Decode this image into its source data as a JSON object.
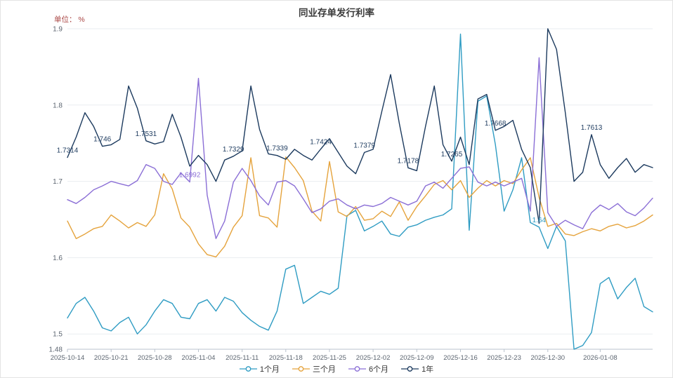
{
  "chart_data": {
    "type": "line",
    "title": "同业存单发行利率",
    "unit": "单位： %",
    "grid": true,
    "legend_position": "bottom",
    "ylim": [
      1.48,
      1.9
    ],
    "y_ticks": [
      {
        "value": 1.9,
        "label": "1.9"
      },
      {
        "value": 1.8,
        "label": "1.8"
      },
      {
        "value": 1.7,
        "label": "1.7"
      },
      {
        "value": 1.6,
        "label": "1.6"
      },
      {
        "value": 1.5,
        "label": "1.5"
      },
      {
        "value": 1.48,
        "label": "1.48"
      }
    ],
    "x_tick_labels": [
      "2025-10-14",
      "2025-10-21",
      "2025-10-28",
      "2025-11-04",
      "2025-11-11",
      "2025-11-18",
      "2025-11-25",
      "2025-12-02",
      "2025-12-09",
      "2025-12-16",
      "2025-12-23",
      "2025-12-30",
      "2026-01-08"
    ],
    "x_tick_indices": [
      0,
      5,
      10,
      15,
      20,
      25,
      30,
      35,
      40,
      45,
      50,
      55,
      61
    ],
    "x": [
      "2025-10-14",
      "2025-10-15",
      "2025-10-16",
      "2025-10-17",
      "2025-10-20",
      "2025-10-21",
      "2025-10-22",
      "2025-10-23",
      "2025-10-24",
      "2025-10-27",
      "2025-10-28",
      "2025-10-29",
      "2025-10-30",
      "2025-10-31",
      "2025-11-03",
      "2025-11-04",
      "2025-11-05",
      "2025-11-06",
      "2025-11-07",
      "2025-11-10",
      "2025-11-11",
      "2025-11-12",
      "2025-11-13",
      "2025-11-14",
      "2025-11-17",
      "2025-11-18",
      "2025-11-19",
      "2025-11-20",
      "2025-11-21",
      "2025-11-24",
      "2025-11-25",
      "2025-11-26",
      "2025-11-27",
      "2025-11-28",
      "2025-12-01",
      "2025-12-02",
      "2025-12-03",
      "2025-12-04",
      "2025-12-05",
      "2025-12-08",
      "2025-12-09",
      "2025-12-10",
      "2025-12-11",
      "2025-12-12",
      "2025-12-15",
      "2025-12-16",
      "2025-12-17",
      "2025-12-18",
      "2025-12-19",
      "2025-12-22",
      "2025-12-23",
      "2025-12-24",
      "2025-12-25",
      "2025-12-26",
      "2025-12-29",
      "2025-12-30",
      "2025-12-31",
      "2026-01-02",
      "2026-01-05",
      "2026-01-06",
      "2026-01-07",
      "2026-01-08",
      "2026-01-09",
      "2026-01-12",
      "2026-01-13",
      "2026-01-14",
      "2026-01-15",
      "2026-01-16"
    ],
    "series": [
      {
        "key": "1m",
        "name": "1个月",
        "color": "#2f9cc3",
        "values": [
          1.521,
          1.54,
          1.548,
          1.53,
          1.508,
          1.504,
          1.515,
          1.522,
          1.5,
          1.512,
          1.53,
          1.545,
          1.54,
          1.522,
          1.52,
          1.54,
          1.545,
          1.53,
          1.548,
          1.543,
          1.528,
          1.518,
          1.51,
          1.505,
          1.53,
          1.585,
          1.59,
          1.54,
          1.548,
          1.556,
          1.552,
          1.56,
          1.655,
          1.662,
          1.635,
          1.641,
          1.648,
          1.631,
          1.628,
          1.64,
          1.643,
          1.649,
          1.653,
          1.656,
          1.664,
          1.893,
          1.636,
          1.805,
          1.812,
          1.748,
          1.661,
          1.689,
          1.731,
          1.646,
          1.64,
          1.612,
          1.641,
          1.622,
          1.48,
          1.485,
          1.502,
          1.566,
          1.574,
          1.546,
          1.561,
          1.573,
          1.536,
          1.529
        ]
      },
      {
        "key": "3m",
        "name": "三个月",
        "color": "#e5a33c",
        "values": [
          1.648,
          1.625,
          1.631,
          1.638,
          1.641,
          1.656,
          1.648,
          1.639,
          1.646,
          1.641,
          1.656,
          1.71,
          1.69,
          1.652,
          1.64,
          1.618,
          1.604,
          1.601,
          1.615,
          1.64,
          1.655,
          1.731,
          1.655,
          1.652,
          1.64,
          1.732,
          1.718,
          1.701,
          1.661,
          1.648,
          1.726,
          1.66,
          1.654,
          1.667,
          1.649,
          1.651,
          1.661,
          1.654,
          1.673,
          1.649,
          1.667,
          1.681,
          1.696,
          1.701,
          1.689,
          1.701,
          1.679,
          1.691,
          1.701,
          1.694,
          1.701,
          1.697,
          1.715,
          1.731,
          1.679,
          1.641,
          1.645,
          1.631,
          1.629,
          1.634,
          1.638,
          1.635,
          1.641,
          1.644,
          1.639,
          1.642,
          1.648,
          1.656
        ]
      },
      {
        "key": "6m",
        "name": "6个月",
        "color": "#8b6fd6",
        "values": [
          1.676,
          1.671,
          1.679,
          1.689,
          1.694,
          1.7,
          1.697,
          1.694,
          1.701,
          1.722,
          1.717,
          1.7,
          1.696,
          1.711,
          1.6992,
          1.835,
          1.682,
          1.625,
          1.648,
          1.699,
          1.717,
          1.701,
          1.681,
          1.669,
          1.699,
          1.701,
          1.694,
          1.677,
          1.659,
          1.664,
          1.674,
          1.677,
          1.669,
          1.664,
          1.669,
          1.667,
          1.671,
          1.679,
          1.674,
          1.669,
          1.674,
          1.694,
          1.699,
          1.691,
          1.704,
          1.717,
          1.719,
          1.699,
          1.694,
          1.699,
          1.694,
          1.699,
          1.704,
          1.661,
          1.862,
          1.659,
          1.641,
          1.649,
          1.643,
          1.638,
          1.659,
          1.669,
          1.663,
          1.671,
          1.66,
          1.655,
          1.665,
          1.678
        ]
      },
      {
        "key": "1y",
        "name": "1年",
        "color": "#1c3a5e",
        "values": [
          1.7314,
          1.758,
          1.79,
          1.772,
          1.746,
          1.748,
          1.755,
          1.825,
          1.796,
          1.7531,
          1.749,
          1.752,
          1.788,
          1.758,
          1.72,
          1.734,
          1.722,
          1.7,
          1.728,
          1.7329,
          1.74,
          1.825,
          1.768,
          1.736,
          1.7339,
          1.729,
          1.742,
          1.734,
          1.728,
          1.7424,
          1.756,
          1.738,
          1.72,
          1.71,
          1.7379,
          1.742,
          1.792,
          1.84,
          1.776,
          1.7178,
          1.714,
          1.772,
          1.825,
          1.748,
          1.7265,
          1.758,
          1.722,
          1.808,
          1.814,
          1.7668,
          1.772,
          1.78,
          1.742,
          1.718,
          1.645,
          1.9,
          1.873,
          1.79,
          1.7,
          1.712,
          1.7613,
          1.722,
          1.704,
          1.718,
          1.73,
          1.712,
          1.722,
          1.718
        ]
      }
    ],
    "annotations": [
      {
        "text": "1.7314",
        "series": "1年",
        "index": 0,
        "value": 1.7314
      },
      {
        "text": "1.746",
        "series": "1年",
        "index": 4,
        "value": 1.746
      },
      {
        "text": "1.7531",
        "series": "1年",
        "index": 9,
        "value": 1.7531
      },
      {
        "text": "1.6992",
        "series": "6个月",
        "index": 14,
        "value": 1.6992
      },
      {
        "text": "1.7329",
        "series": "1年",
        "index": 19,
        "value": 1.7329
      },
      {
        "text": "1.7339",
        "series": "1年",
        "index": 24,
        "value": 1.7339
      },
      {
        "text": "1.7424",
        "series": "1年",
        "index": 29,
        "value": 1.7424
      },
      {
        "text": "1.7379",
        "series": "1年",
        "index": 34,
        "value": 1.7379
      },
      {
        "text": "1.7178",
        "series": "1年",
        "index": 39,
        "value": 1.7178
      },
      {
        "text": "1.7265",
        "series": "1年",
        "index": 44,
        "value": 1.7265
      },
      {
        "text": "1.7668",
        "series": "1年",
        "index": 49,
        "value": 1.7668
      },
      {
        "text": "1.64",
        "series": "1个月",
        "index": 54,
        "value": 1.64
      },
      {
        "text": "1.7613",
        "series": "1年",
        "index": 60,
        "value": 1.7613
      }
    ],
    "legend_labels": [
      "1个月",
      "三个月",
      "6个月",
      "1年"
    ]
  }
}
